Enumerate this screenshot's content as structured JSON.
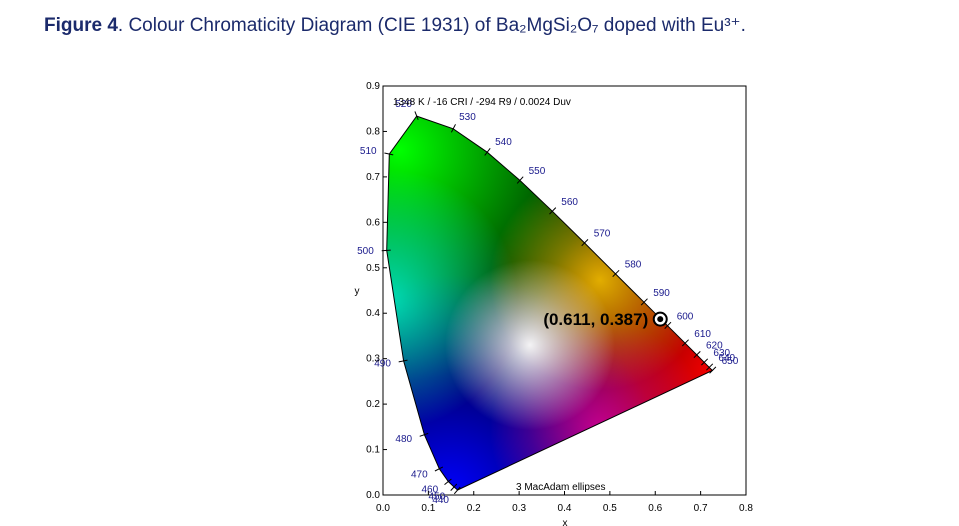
{
  "caption": {
    "label": "Figure 4",
    "text": ". Colour Chromaticity Diagram (CIE 1931) of Ba₂MgSi₂O₇ doped with Eu³⁺."
  },
  "chart_data": {
    "type": "scatter",
    "xlabel": "x",
    "ylabel": "y",
    "xlim": [
      0.0,
      0.8
    ],
    "ylim": [
      0.0,
      0.9
    ],
    "x_ticks": [
      "0.0",
      "0.1",
      "0.2",
      "0.3",
      "0.4",
      "0.5",
      "0.6",
      "0.7",
      "0.8"
    ],
    "y_ticks": [
      "0.0",
      "0.1",
      "0.2",
      "0.3",
      "0.4",
      "0.5",
      "0.6",
      "0.7",
      "0.8",
      "0.9"
    ],
    "header_note": "1348 K / -16 CRI / -294 R9 / 0.0024 Duv",
    "footer_note": "3 MacAdam ellipses",
    "point": {
      "x": 0.611,
      "y": 0.387,
      "label": "(0.611, 0.387)"
    },
    "spectral_locus": [
      {
        "nm": "440",
        "x": 0.1644,
        "y": 0.0109
      },
      {
        "nm": "450",
        "x": 0.1566,
        "y": 0.0177
      },
      {
        "nm": "460",
        "x": 0.144,
        "y": 0.0297
      },
      {
        "nm": "470",
        "x": 0.1241,
        "y": 0.0578
      },
      {
        "nm": "480",
        "x": 0.0913,
        "y": 0.1327
      },
      {
        "nm": "490",
        "x": 0.0454,
        "y": 0.295
      },
      {
        "nm": "500",
        "x": 0.0082,
        "y": 0.5384
      },
      {
        "nm": "510",
        "x": 0.0139,
        "y": 0.7502
      },
      {
        "nm": "520",
        "x": 0.0743,
        "y": 0.8338
      },
      {
        "nm": "530",
        "x": 0.1547,
        "y": 0.8059
      },
      {
        "nm": "540",
        "x": 0.2296,
        "y": 0.7543
      },
      {
        "nm": "550",
        "x": 0.3016,
        "y": 0.6923
      },
      {
        "nm": "560",
        "x": 0.3731,
        "y": 0.6245
      },
      {
        "nm": "570",
        "x": 0.4441,
        "y": 0.5547
      },
      {
        "nm": "580",
        "x": 0.5125,
        "y": 0.4866
      },
      {
        "nm": "590",
        "x": 0.5752,
        "y": 0.4242
      },
      {
        "nm": "600",
        "x": 0.627,
        "y": 0.3725
      },
      {
        "nm": "610",
        "x": 0.6658,
        "y": 0.334
      },
      {
        "nm": "620",
        "x": 0.6915,
        "y": 0.3083
      },
      {
        "nm": "630",
        "x": 0.7079,
        "y": 0.292
      },
      {
        "nm": "640",
        "x": 0.719,
        "y": 0.2809
      },
      {
        "nm": "650",
        "x": 0.726,
        "y": 0.274
      }
    ],
    "colors": {
      "caption": "#1b2a6b",
      "wavelength_labels": "#1a1a8c",
      "axis": "#000000"
    }
  }
}
